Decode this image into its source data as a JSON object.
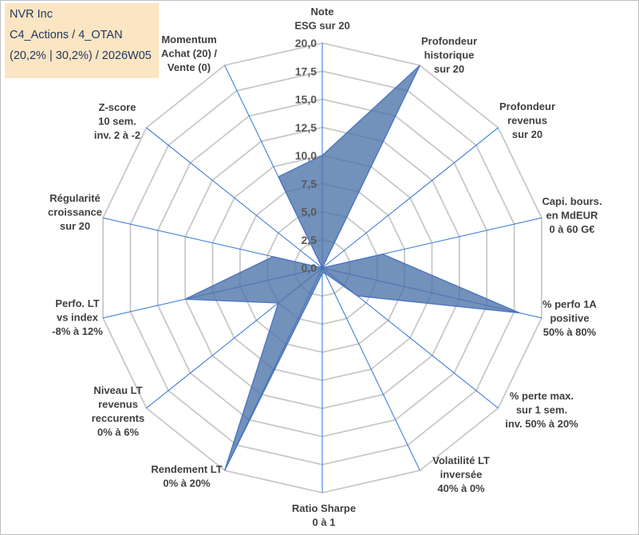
{
  "title_box": {
    "line1": "NVR Inc",
    "line2": "C4_Actions / 4_OTAN",
    "line3": "(20,2% | 30,2%) / 2026W05",
    "background": "#fbe5c2",
    "text_color": "#1f3864"
  },
  "chart_data": {
    "type": "radar",
    "title": "NVR Inc",
    "rlim": [
      0,
      20
    ],
    "tick_values": [
      0,
      2.5,
      5,
      7.5,
      10,
      12.5,
      15,
      17.5,
      20
    ],
    "tick_labels": [
      "0,0",
      "2,5",
      "5,0",
      "7,5",
      "10,0",
      "12,5",
      "15,0",
      "17,5",
      "20,0"
    ],
    "grid": true,
    "axes": [
      {
        "label": [
          "Note",
          "ESG sur 20"
        ]
      },
      {
        "label": [
          "Profondeur",
          "historique",
          "sur 20"
        ]
      },
      {
        "label": [
          "Profondeur",
          "revenus",
          "sur 20"
        ]
      },
      {
        "label": [
          "Capi. bours.",
          "en MdEUR",
          "0 à 60 G€"
        ]
      },
      {
        "label": [
          "% perfo 1A",
          "positive",
          "50% à 80%"
        ]
      },
      {
        "label": [
          "% perte max.",
          "sur 1 sem.",
          "inv. 50% à 20%"
        ]
      },
      {
        "label": [
          "Volatilité LT",
          "inversée",
          "40% à 0%"
        ]
      },
      {
        "label": [
          "Ratio Sharpe",
          "0 à 1"
        ]
      },
      {
        "label": [
          "Rendement LT",
          "0% à 20%"
        ]
      },
      {
        "label": [
          "Niveau LT",
          "revenus",
          "reccurents",
          "0% à 6%"
        ]
      },
      {
        "label": [
          "Perfo. LT",
          "vs index",
          "-8% à 12%"
        ]
      },
      {
        "label": [
          "Régularité",
          "croissance",
          "sur 20"
        ]
      },
      {
        "label": [
          "Z-score",
          "10 sem.",
          "inv. 2 à -2"
        ]
      },
      {
        "label": [
          "Momentum",
          "Achat (20) /",
          "Vente (0)"
        ]
      }
    ],
    "series": [
      {
        "name": "NVR Inc",
        "values": [
          10,
          20,
          0,
          5.5,
          18,
          4,
          0.5,
          0.5,
          20,
          5,
          12.5,
          4.5,
          0,
          9
        ],
        "fill": "#4a72a8",
        "fill_opacity": 0.78,
        "stroke": "#4a72c4"
      }
    ]
  }
}
